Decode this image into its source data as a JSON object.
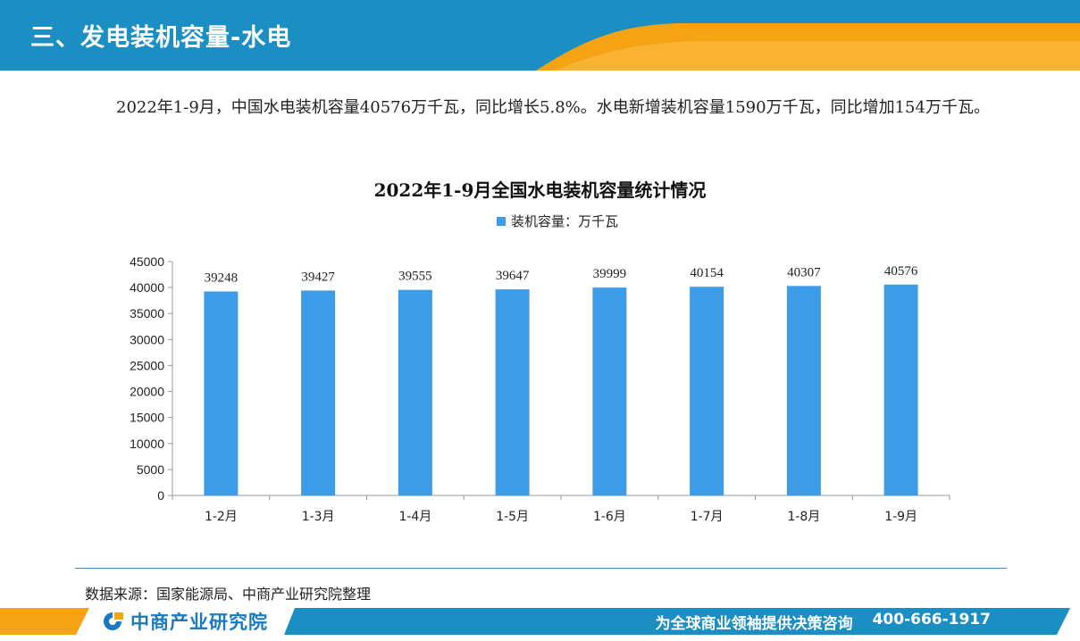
{
  "header": {
    "title": "三、发电装机容量-水电",
    "colors": {
      "blue": "#1b8fc4",
      "orange": "#f5a312"
    }
  },
  "intro": {
    "text": "2022年1-9月，中国水电装机容量40576万千瓦，同比增长5.8%。水电新增装机容量1590万千瓦，同比增加154万千瓦。"
  },
  "chart_data": {
    "type": "bar",
    "title": "2022年1-9月全国水电装机容量统计情况",
    "categories": [
      "1-2月",
      "1-3月",
      "1-4月",
      "1-5月",
      "1-6月",
      "1-7月",
      "1-8月",
      "1-9月"
    ],
    "series": [
      {
        "name": "装机容量：万千瓦",
        "values": [
          39248,
          39427,
          39555,
          39647,
          39999,
          40154,
          40307,
          40576
        ]
      }
    ],
    "ylim": [
      0,
      45000
    ],
    "yticks": [
      0,
      5000,
      10000,
      15000,
      20000,
      25000,
      30000,
      35000,
      40000,
      45000
    ],
    "xlabel": "",
    "ylabel": "",
    "legend_position": "top",
    "grid": false,
    "bar_color": "#3d9ce8"
  },
  "source": {
    "text": "数据来源：国家能源局、中商产业研究院整理"
  },
  "footer": {
    "logo_text": "中商产业研究院",
    "slogan": "为全球商业领袖提供决策咨询",
    "phone": "400-666-1917",
    "colors": {
      "blue": "#1b8fc4",
      "orange": "#f5a312"
    }
  }
}
